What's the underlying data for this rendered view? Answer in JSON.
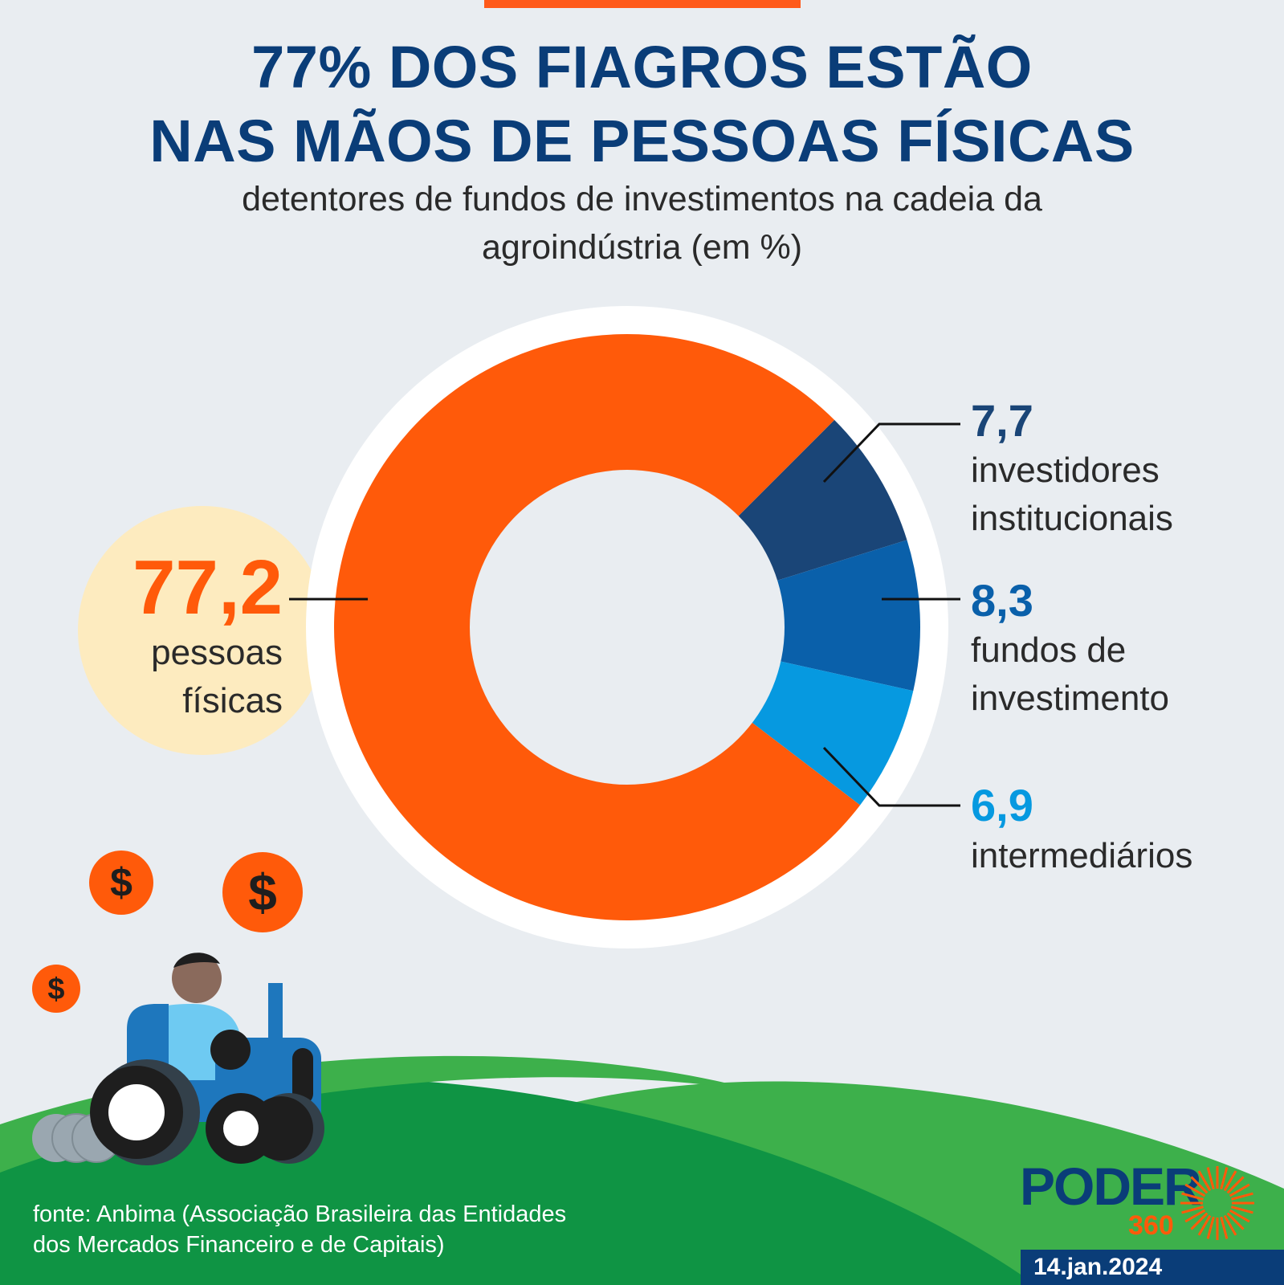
{
  "header": {
    "title_line1": "77% DOS FIAGROS ESTÃO",
    "title_line2": "NAS MÃOS DE PESSOAS FÍSICAS",
    "subtitle_line1": "detentores de fundos de investimentos na cadeia da",
    "subtitle_line2": "agroindústria (em %)"
  },
  "chart_data": {
    "type": "pie",
    "title": "77% DOS FIAGROS ESTÃO NAS MÃOS DE PESSOAS FÍSICAS",
    "subtitle": "detentores de fundos de investimentos na cadeia da agroindústria (em %)",
    "unit": "%",
    "slices": [
      {
        "label_lines": [
          "investidores",
          "institucionais"
        ],
        "value": 7.7,
        "value_text": "7,7",
        "color": "#1a4577"
      },
      {
        "label_lines": [
          "fundos de",
          "investimento"
        ],
        "value": 8.3,
        "value_text": "8,3",
        "color": "#0a60aa"
      },
      {
        "label_lines": [
          "intermediários"
        ],
        "value": 6.9,
        "value_text": "6,9",
        "color": "#0699e0"
      },
      {
        "label_lines": [
          "pessoas",
          "físicas"
        ],
        "value": 77.2,
        "value_text": "77,2",
        "color": "#ff5a0a"
      }
    ],
    "highlight": "pessoas físicas"
  },
  "footer": {
    "source_line1": "fonte: Anbima (Associação Brasileira das Entidades",
    "source_line2": "dos Mercados Financeiro e de Capitais)",
    "date": "14.jan.2024"
  },
  "logo": {
    "brand": "PODER",
    "number": "360"
  },
  "icons": [
    "dollar-coin-icon",
    "tractor-icon",
    "farmer-icon",
    "sun-rays-icon"
  ],
  "colors": {
    "background": "#e9edf1",
    "title": "#0a3d78",
    "accent": "#ff5a0a",
    "hill_light": "#3db04b",
    "hill_dark": "#0f9444",
    "highlight_circle": "#fdebbf"
  }
}
